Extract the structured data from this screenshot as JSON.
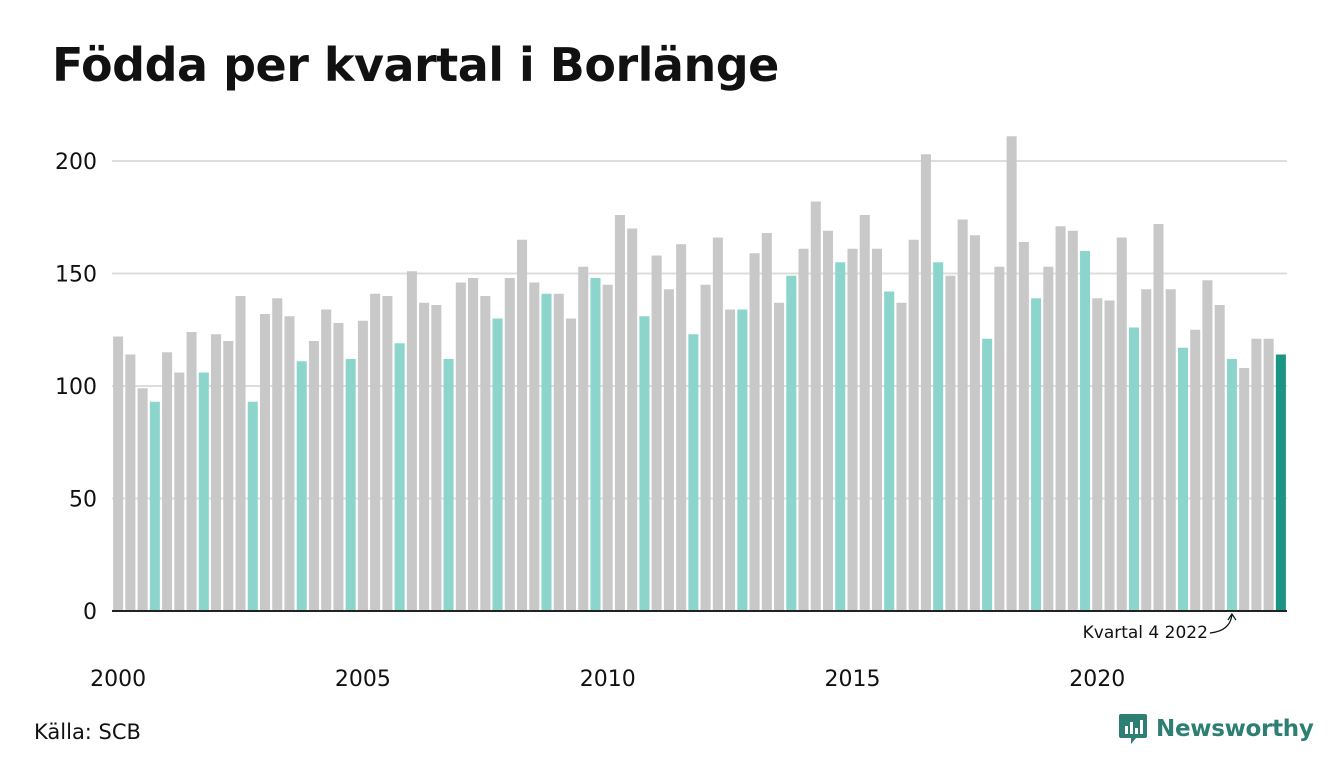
{
  "chart_data": {
    "type": "bar",
    "title": "Födda per kvartal i Borlänge",
    "xlabel": "",
    "ylabel": "",
    "ylim": [
      0,
      210
    ],
    "yticks": [
      0,
      50,
      100,
      150,
      200
    ],
    "xticks": [
      "2000",
      "2005",
      "2010",
      "2015",
      "2020"
    ],
    "grid": true,
    "legend": "none",
    "start_year": 2000,
    "categories": [
      "2000 K1",
      "2000 K2",
      "2000 K3",
      "2000 K4",
      "2001 K1",
      "2001 K2",
      "2001 K3",
      "2001 K4",
      "2002 K1",
      "2002 K2",
      "2002 K3",
      "2002 K4",
      "2003 K1",
      "2003 K2",
      "2003 K3",
      "2003 K4",
      "2004 K1",
      "2004 K2",
      "2004 K3",
      "2004 K4",
      "2005 K1",
      "2005 K2",
      "2005 K3",
      "2005 K4",
      "2006 K1",
      "2006 K2",
      "2006 K3",
      "2006 K4",
      "2007 K1",
      "2007 K2",
      "2007 K3",
      "2007 K4",
      "2008 K1",
      "2008 K2",
      "2008 K3",
      "2008 K4",
      "2009 K1",
      "2009 K2",
      "2009 K3",
      "2009 K4",
      "2010 K1",
      "2010 K2",
      "2010 K3",
      "2010 K4",
      "2011 K1",
      "2011 K2",
      "2011 K3",
      "2011 K4",
      "2012 K1",
      "2012 K2",
      "2012 K3",
      "2012 K4",
      "2013 K1",
      "2013 K2",
      "2013 K3",
      "2013 K4",
      "2014 K1",
      "2014 K2",
      "2014 K3",
      "2014 K4",
      "2015 K1",
      "2015 K2",
      "2015 K3",
      "2015 K4",
      "2016 K1",
      "2016 K2",
      "2016 K3",
      "2016 K4",
      "2017 K1",
      "2017 K2",
      "2017 K3",
      "2017 K4",
      "2018 K1",
      "2018 K2",
      "2018 K3",
      "2018 K4",
      "2019 K1",
      "2019 K2",
      "2019 K3",
      "2019 K4",
      "2020 K1",
      "2020 K2",
      "2020 K3",
      "2020 K4",
      "2021 K1",
      "2021 K2",
      "2021 K3",
      "2021 K4",
      "2022 K1",
      "2022 K2",
      "2022 K3",
      "2022 K4",
      "2023 K1",
      "2023 K2",
      "2023 K3",
      "2023 K4"
    ],
    "values": [
      122,
      114,
      99,
      93,
      115,
      106,
      124,
      106,
      123,
      120,
      140,
      93,
      132,
      139,
      131,
      111,
      120,
      134,
      128,
      112,
      129,
      141,
      140,
      119,
      151,
      137,
      136,
      112,
      146,
      148,
      140,
      130,
      148,
      165,
      146,
      141,
      141,
      130,
      153,
      148,
      145,
      176,
      170,
      131,
      158,
      143,
      163,
      123,
      145,
      166,
      134,
      134,
      159,
      168,
      137,
      149,
      161,
      182,
      169,
      155,
      161,
      176,
      161,
      142,
      137,
      165,
      203,
      155,
      149,
      174,
      167,
      121,
      153,
      211,
      164,
      139,
      153,
      171,
      169,
      160,
      139,
      138,
      166,
      126,
      143,
      172,
      143,
      117,
      125,
      147,
      136,
      112,
      108,
      121,
      121,
      114
    ],
    "colors": {
      "default": "#c8c8c8",
      "quarter4": "#8cd5cd",
      "latest": "#1c9484",
      "grid": "#dddddd",
      "axis": "#222222"
    },
    "annotation": {
      "text": "Kvartal 4 2022",
      "target": "2022 K4"
    }
  },
  "footer": {
    "source": "Källa: SCB",
    "brand": "Newsworthy"
  }
}
